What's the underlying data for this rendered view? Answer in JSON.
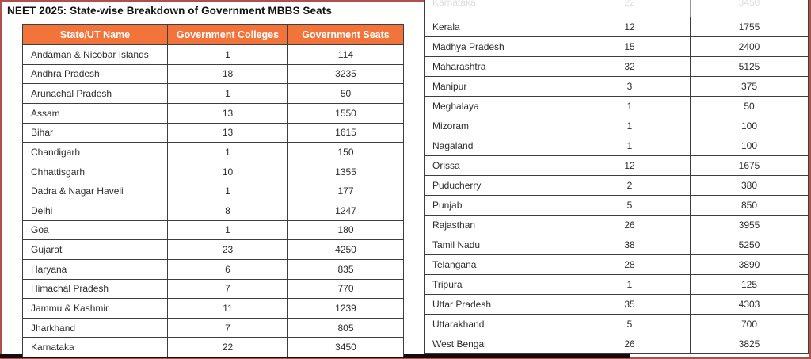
{
  "page": {
    "title": "NEET 2025: State-wise Breakdown of Government MBBS Seats",
    "accent_color": "#f2743b",
    "frame_color": "#b0504c"
  },
  "table": {
    "headers": [
      "State/UT Name",
      "Government Colleges",
      "Government Seats"
    ],
    "left_rows": [
      [
        "Andaman & Nicobar Islands",
        "1",
        "114"
      ],
      [
        "Andhra Pradesh",
        "18",
        "3235"
      ],
      [
        "Arunachal Pradesh",
        "1",
        "50"
      ],
      [
        "Assam",
        "13",
        "1550"
      ],
      [
        "Bihar",
        "13",
        "1615"
      ],
      [
        "Chandigarh",
        "1",
        "150"
      ],
      [
        "Chhattisgarh",
        "10",
        "1355"
      ],
      [
        "Dadra & Nagar Haveli",
        "1",
        "177"
      ],
      [
        "Delhi",
        "8",
        "1247"
      ],
      [
        "Goa",
        "1",
        "180"
      ],
      [
        "Gujarat",
        "23",
        "4250"
      ],
      [
        "Haryana",
        "6",
        "835"
      ],
      [
        "Himachal Pradesh",
        "7",
        "770"
      ],
      [
        "Jammu & Kashmir",
        "11",
        "1239"
      ],
      [
        "Jharkhand",
        "7",
        "805"
      ],
      [
        "Karnataka",
        "22",
        "3450"
      ]
    ],
    "right_ghost_row": [
      "Karnataka",
      "22",
      "3450"
    ],
    "right_rows": [
      [
        "Kerala",
        "12",
        "1755"
      ],
      [
        "Madhya Pradesh",
        "15",
        "2400"
      ],
      [
        "Maharashtra",
        "32",
        "5125"
      ],
      [
        "Manipur",
        "3",
        "375"
      ],
      [
        "Meghalaya",
        "1",
        "50"
      ],
      [
        "Mizoram",
        "1",
        "100"
      ],
      [
        "Nagaland",
        "1",
        "100"
      ],
      [
        "Orissa",
        "12",
        "1675"
      ],
      [
        "Puducherry",
        "2",
        "380"
      ],
      [
        "Punjab",
        "5",
        "850"
      ],
      [
        "Rajasthan",
        "26",
        "3955"
      ],
      [
        "Tamil Nadu",
        "38",
        "5250"
      ],
      [
        "Telangana",
        "28",
        "3890"
      ],
      [
        "Tripura",
        "1",
        "125"
      ],
      [
        "Uttar Pradesh",
        "35",
        "4303"
      ],
      [
        "Uttarakhand",
        "5",
        "700"
      ],
      [
        "West Bengal",
        "26",
        "3825"
      ]
    ]
  }
}
